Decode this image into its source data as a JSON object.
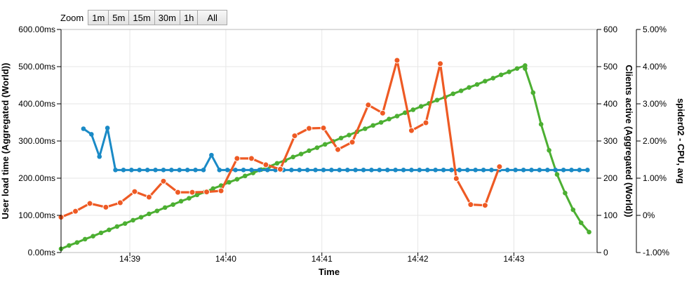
{
  "zoom": {
    "label": "Zoom",
    "buttons": [
      "1m",
      "5m",
      "15m",
      "30m",
      "1h",
      "All"
    ]
  },
  "chart_data": {
    "type": "line",
    "xlabel": "Time",
    "x_ticks": [
      "14:39",
      "14:40",
      "14:41",
      "14:42",
      "14:43"
    ],
    "x_range": [
      "14:38:17",
      "14:43:52"
    ],
    "grid": true,
    "axes": {
      "left": {
        "title": "User load time (Aggregated (World))",
        "min": 0,
        "max": 600,
        "ticks": [
          "0.00ms",
          "100.00ms",
          "200.00ms",
          "300.00ms",
          "400.00ms",
          "500.00ms",
          "600.00ms"
        ]
      },
      "right1": {
        "title": "Clients active (Aggregated (World))",
        "min": 0,
        "max": 600,
        "ticks": [
          "0",
          "100",
          "200",
          "300",
          "400",
          "500",
          "600"
        ]
      },
      "right2": {
        "title": "spider02 - CPU, avg",
        "min": -1,
        "max": 5,
        "ticks": [
          "-1.00%",
          "0%",
          "1.00%",
          "2.00%",
          "3.00%",
          "4.00%",
          "5.00%"
        ]
      }
    },
    "series": [
      {
        "color": "#4caf32",
        "axis": "right1",
        "segments": [
          {
            "start": "14:38:17",
            "step_s": 5,
            "points": [
              10,
              19,
              27,
              36,
              44,
              53,
              61,
              70,
              78,
              87,
              95,
              104,
              112,
              121,
              129,
              138,
              146,
              155,
              163,
              172,
              180,
              189,
              197,
              206,
              214,
              223,
              231,
              240,
              248,
              257,
              265,
              274,
              282,
              291,
              299,
              308,
              316,
              325,
              333,
              342,
              350,
              359,
              367,
              376,
              384,
              393,
              401,
              410,
              418,
              427,
              435,
              444,
              452,
              461,
              469,
              478,
              486,
              495,
              503
            ]
          },
          {
            "times": [
              "14:43:07",
              "14:43:12",
              "14:43:17",
              "14:43:22",
              "14:43:27",
              "14:43:32",
              "14:43:37",
              "14:43:42",
              "14:43:47"
            ],
            "points": [
              495,
              430,
              345,
              275,
              210,
              160,
              115,
              80,
              55
            ]
          }
        ]
      },
      {
        "color": "#1a8ac6",
        "axis": "left",
        "segments": [
          {
            "start": "14:38:31",
            "step_s": 5,
            "points": [
              333,
              318,
              258,
              335,
              222,
              222,
              222,
              222,
              222,
              222,
              222,
              222,
              222,
              222,
              222,
              222,
              262,
              222,
              222,
              222,
              222,
              222,
              222,
              222,
              222,
              222,
              222,
              222,
              222,
              222,
              222,
              222,
              222,
              222,
              222,
              222,
              222,
              222,
              222,
              222,
              222,
              222,
              222,
              222,
              222,
              222,
              222,
              222,
              222,
              222,
              222,
              222,
              222,
              222,
              222,
              222,
              222,
              222,
              222,
              222,
              222,
              222,
              222,
              222
            ]
          }
        ]
      },
      {
        "color": "#ee5a24",
        "axis": "right2",
        "points": [
          [
            "14:38:17",
            -0.05
          ],
          [
            "14:38:26",
            0.11
          ],
          [
            "14:38:35",
            0.32
          ],
          [
            "14:38:45",
            0.22
          ],
          [
            "14:38:54",
            0.34
          ],
          [
            "14:39:03",
            0.64
          ],
          [
            "14:39:12",
            0.49
          ],
          [
            "14:39:21",
            0.92
          ],
          [
            "14:39:30",
            0.62
          ],
          [
            "14:39:39",
            0.62
          ],
          [
            "14:39:48",
            0.63
          ],
          [
            "14:39:57",
            0.66
          ],
          [
            "14:40:07",
            1.53
          ],
          [
            "14:40:16",
            1.53
          ],
          [
            "14:40:25",
            1.36
          ],
          [
            "14:40:34",
            1.24
          ],
          [
            "14:40:43",
            2.14
          ],
          [
            "14:40:52",
            2.34
          ],
          [
            "14:41:01",
            2.35
          ],
          [
            "14:41:10",
            1.77
          ],
          [
            "14:41:19",
            1.97
          ],
          [
            "14:41:29",
            2.97
          ],
          [
            "14:41:38",
            2.75
          ],
          [
            "14:41:47",
            4.17
          ],
          [
            "14:41:56",
            2.28
          ],
          [
            "14:42:05",
            2.49
          ],
          [
            "14:42:14",
            4.08
          ],
          [
            "14:42:24",
            0.99
          ],
          [
            "14:42:33",
            0.29
          ],
          [
            "14:42:42",
            0.27
          ],
          [
            "14:42:51",
            1.31
          ]
        ]
      }
    ]
  }
}
